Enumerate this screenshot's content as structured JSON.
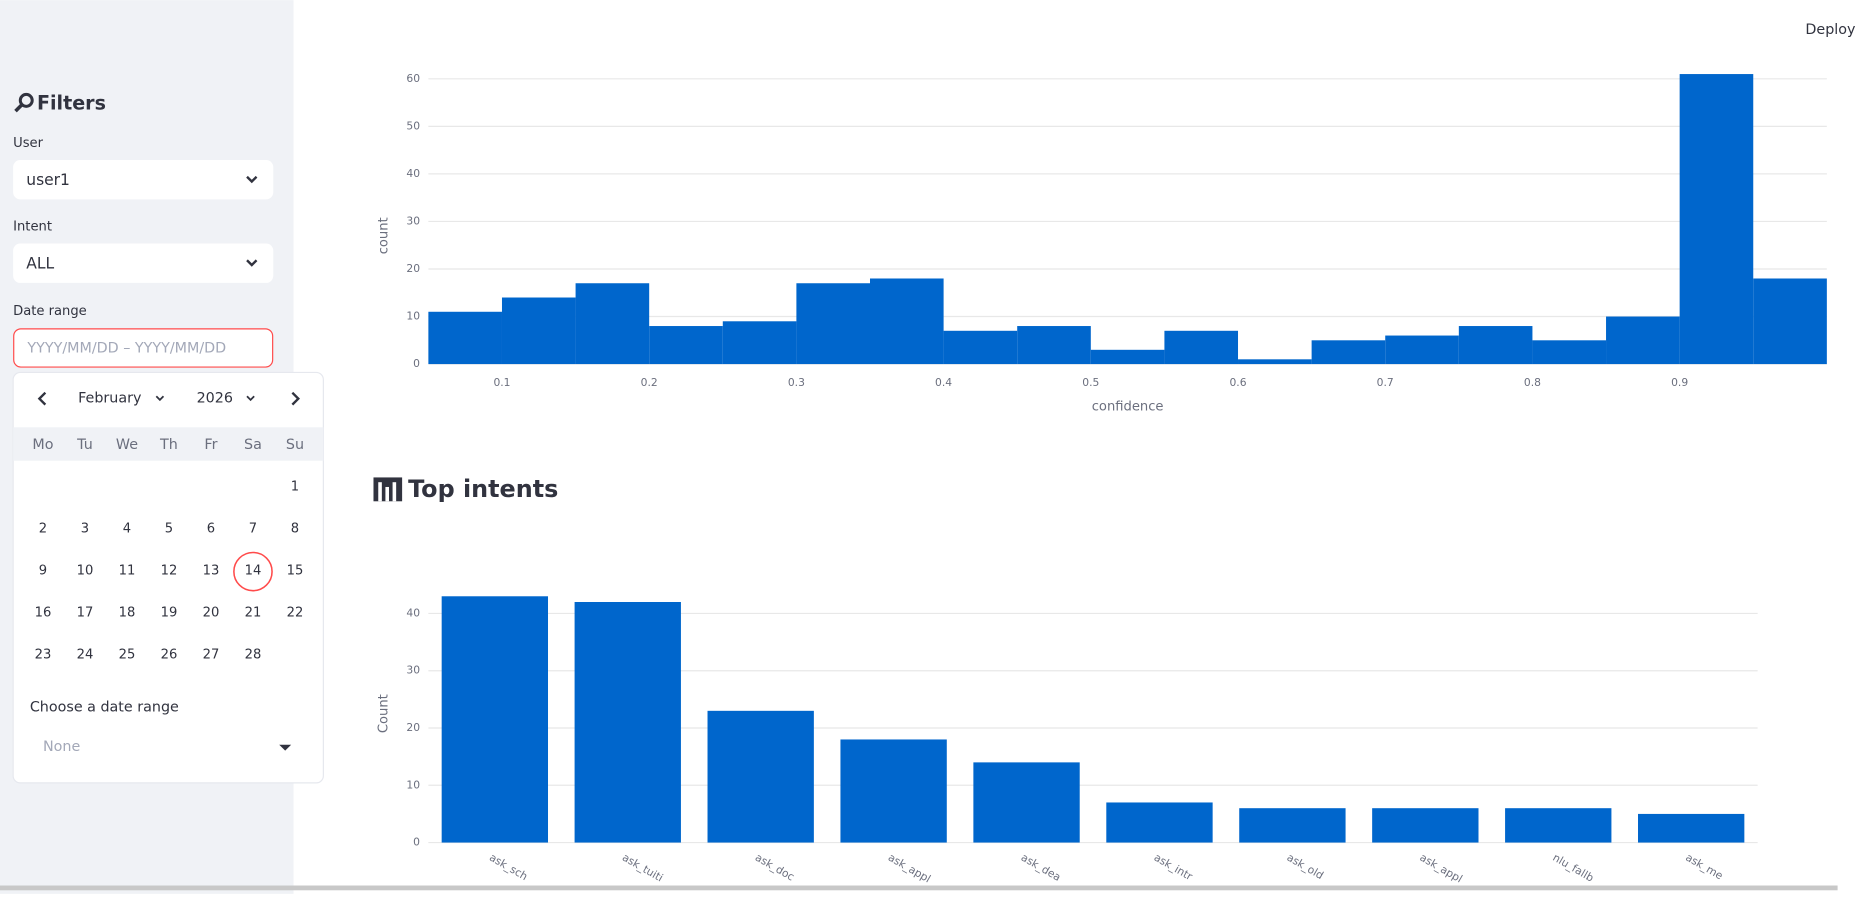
{
  "app": {
    "deploy": "Deploy"
  },
  "sidebar": {
    "title": "Filters",
    "user_label": "User",
    "user_value": "user1",
    "intent_label": "Intent",
    "intent_value": "ALL",
    "date_label": "Date range",
    "date_placeholder": "YYYY/MM/DD – YYYY/MM/DD"
  },
  "calendar": {
    "month": "February",
    "year": "2026",
    "weekdays": [
      "Mo",
      "Tu",
      "We",
      "Th",
      "Fr",
      "Sa",
      "Su"
    ],
    "days": [
      1,
      2,
      3,
      4,
      5,
      6,
      7,
      8,
      9,
      10,
      11,
      12,
      13,
      14,
      15,
      16,
      17,
      18,
      19,
      20,
      21,
      22,
      23,
      24,
      25,
      26,
      27,
      28
    ],
    "preset_label": "Choose a date range",
    "preset_value": "None"
  },
  "section": {
    "title": "Top intents"
  },
  "chart_data": [
    {
      "type": "histogram",
      "x_label": "confidence",
      "y_label": "count",
      "color": "#0066cc",
      "bins": [
        0.05,
        0.1,
        0.15,
        0.2,
        0.25,
        0.3,
        0.35,
        0.4,
        0.45,
        0.5,
        0.55,
        0.6,
        0.65,
        0.7,
        0.75,
        0.8,
        0.85,
        0.9,
        0.95,
        1
      ],
      "values": [
        11,
        14,
        17,
        8,
        9,
        17,
        18,
        7,
        8,
        3,
        7,
        1,
        5,
        6,
        8,
        5,
        10,
        61,
        18
      ],
      "xlim": [
        0.05,
        1
      ],
      "xticks": [
        0.1,
        0.2,
        0.3,
        0.4,
        0.5,
        0.6,
        0.7,
        0.8,
        0.9
      ],
      "ylim": [
        0,
        64
      ],
      "yticks": [
        0,
        10,
        20,
        30,
        40,
        50,
        60
      ],
      "grid": true
    },
    {
      "type": "bar",
      "y_label": "Count",
      "color": "#0066cc",
      "categories": [
        "ask_sch",
        "ask_tuiti",
        "ask_doc",
        "ask_appl",
        "ask_dea",
        "ask_intr",
        "ask_old",
        "ask_appl",
        "nlu_fallb",
        "ask_me"
      ],
      "values": [
        43,
        42,
        23,
        18,
        14,
        7,
        6,
        6,
        6,
        5
      ],
      "ylim": [
        0,
        45
      ],
      "yticks": [
        0,
        10,
        20,
        30,
        40
      ],
      "grid": true
    }
  ]
}
